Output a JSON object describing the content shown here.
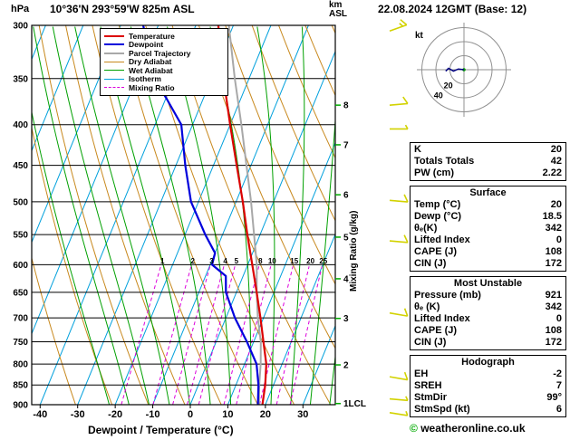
{
  "header": {
    "pressure_unit": "hPa",
    "station_title": "10°36'N 293°59'W 825m ASL",
    "datetime": "22.08.2024 12GMT (Base: 12)",
    "altitude_unit_line1": "km",
    "altitude_unit_line2": "ASL"
  },
  "chart_data": {
    "type": "skewt_log_p_sounding",
    "title": "10°36'N 293°59'W 825m ASL",
    "xlabel": "Dewpoint / Temperature (°C)",
    "x_ticks_c": [
      -40,
      -30,
      -20,
      -10,
      0,
      10,
      20,
      30
    ],
    "x_axis_range_c": [
      -42,
      38
    ],
    "pressure_ticks_hpa": [
      300,
      350,
      400,
      450,
      500,
      550,
      600,
      650,
      700,
      750,
      800,
      850,
      900
    ],
    "pressure_range_hpa": [
      300,
      900
    ],
    "km_axis": {
      "ticks": [
        {
          "label": "8",
          "p": 378
        },
        {
          "label": "7",
          "p": 424
        },
        {
          "label": "6",
          "p": 490
        },
        {
          "label": "5",
          "p": 554
        },
        {
          "label": "4",
          "p": 625
        },
        {
          "label": "3",
          "p": 701
        },
        {
          "label": "2",
          "p": 802
        },
        {
          "label": "1LCL",
          "p": 897
        }
      ]
    },
    "mixing_ratio_label": "Mixing Ratio (g/kg)",
    "mixing_ratio_values_gkg": [
      1,
      2,
      3,
      4,
      5,
      8,
      10,
      15,
      20,
      25
    ],
    "isotherm_step_c": 10,
    "dry_adiabat_step_k": 10,
    "wet_adiabat_step_c": 5,
    "temperature_profile_p_c": [
      [
        921,
        20
      ],
      [
        900,
        19.2
      ],
      [
        850,
        17.8
      ],
      [
        800,
        15.8
      ],
      [
        750,
        12.6
      ],
      [
        700,
        9.2
      ],
      [
        650,
        5.4
      ],
      [
        600,
        1.2
      ],
      [
        550,
        -3.4
      ],
      [
        500,
        -8.2
      ],
      [
        450,
        -13.8
      ],
      [
        400,
        -20
      ],
      [
        350,
        -26.8
      ],
      [
        300,
        -34
      ]
    ],
    "dewpoint_profile_p_c": [
      [
        921,
        18.5
      ],
      [
        900,
        18
      ],
      [
        850,
        16
      ],
      [
        800,
        13.2
      ],
      [
        750,
        8.2
      ],
      [
        700,
        2.4
      ],
      [
        650,
        -2.8
      ],
      [
        620,
        -4.6
      ],
      [
        600,
        -9.5
      ],
      [
        580,
        -10
      ],
      [
        550,
        -14.6
      ],
      [
        500,
        -22
      ],
      [
        450,
        -27.5
      ],
      [
        400,
        -33
      ],
      [
        370,
        -40
      ],
      [
        350,
        -45.5
      ],
      [
        300,
        -54
      ]
    ],
    "parcel_profile_p_c": [
      [
        921,
        20
      ],
      [
        900,
        18.3
      ],
      [
        850,
        16.2
      ],
      [
        800,
        14.3
      ],
      [
        750,
        11.9
      ],
      [
        700,
        8.5
      ],
      [
        650,
        5.4
      ],
      [
        600,
        2.4
      ],
      [
        550,
        -1.6
      ],
      [
        500,
        -6
      ],
      [
        450,
        -11.2
      ],
      [
        400,
        -17
      ],
      [
        350,
        -23.8
      ],
      [
        300,
        -31.2
      ]
    ],
    "wind_barbs": [
      {
        "p": 305,
        "dir": 70,
        "spd": 15
      },
      {
        "p": 378,
        "dir": 85,
        "spd": 10
      },
      {
        "p": 405,
        "dir": 90,
        "spd": 5
      },
      {
        "p": 498,
        "dir": 95,
        "spd": 10
      },
      {
        "p": 560,
        "dir": 95,
        "spd": 10
      },
      {
        "p": 690,
        "dir": 100,
        "spd": 10
      },
      {
        "p": 830,
        "dir": 100,
        "spd": 10
      },
      {
        "p": 885,
        "dir": 95,
        "spd": 5
      },
      {
        "p": 921,
        "dir": 99,
        "spd": 6
      }
    ],
    "colors": {
      "temperature": "#dc0000",
      "dewpoint": "#0000dc",
      "parcel": "#a8a8a8",
      "dry_adiabat": "#c8891e",
      "wet_adiabat": "#00a000",
      "isotherm": "#00a0dc",
      "mixing_ratio": "#dc00dc",
      "wind_barb": "#d2d200",
      "km_tick": "#00aa00",
      "grid": "#000000"
    },
    "layout": {
      "y_scale": "log_pressure",
      "skew_dx_per_dy": 0.41,
      "grid": true,
      "legend_position": "top-left-inside"
    }
  },
  "legend": {
    "items": [
      {
        "label": "Temperature",
        "color": "#dc0000",
        "style": "solid",
        "weight": 2
      },
      {
        "label": "Dewpoint",
        "color": "#0000dc",
        "style": "solid",
        "weight": 2
      },
      {
        "label": "Parcel Trajectory",
        "color": "#a8a8a8",
        "style": "solid",
        "weight": 2
      },
      {
        "label": "Dry Adiabat",
        "color": "#c8891e",
        "style": "solid",
        "weight": 1
      },
      {
        "label": "Wet Adiabat",
        "color": "#00a000",
        "style": "solid",
        "weight": 1
      },
      {
        "label": "Isotherm",
        "color": "#00a0dc",
        "style": "solid",
        "weight": 1
      },
      {
        "label": "Mixing Ratio",
        "color": "#dc00dc",
        "style": "dashed",
        "weight": 1
      }
    ]
  },
  "hodograph": {
    "unit_label": "kt",
    "rings_kt": [
      20,
      40,
      60
    ],
    "ring_labels": [
      "20",
      "40"
    ],
    "trace_uv_kt": [
      [
        0,
        0
      ],
      [
        -8,
        1
      ],
      [
        -15,
        -2
      ],
      [
        -22,
        2
      ],
      [
        -26,
        -2
      ]
    ],
    "trace_color": "#000080"
  },
  "panels": [
    {
      "rows": [
        [
          "K",
          "20"
        ],
        [
          "Totals Totals",
          "42"
        ],
        [
          "PW (cm)",
          "2.22"
        ]
      ]
    },
    {
      "title": "Surface",
      "rows": [
        [
          "Temp (°C)",
          "20"
        ],
        [
          "Dewp (°C)",
          "18.5"
        ],
        [
          "θₑ(K)",
          "342"
        ],
        [
          "Lifted Index",
          "0"
        ],
        [
          "CAPE (J)",
          "108"
        ],
        [
          "CIN (J)",
          "172"
        ]
      ]
    },
    {
      "title": "Most Unstable",
      "rows": [
        [
          "Pressure (mb)",
          "921"
        ],
        [
          "θₑ (K)",
          "342"
        ],
        [
          "Lifted Index",
          "0"
        ],
        [
          "CAPE (J)",
          "108"
        ],
        [
          "CIN (J)",
          "172"
        ]
      ]
    },
    {
      "title": "Hodograph",
      "rows": [
        [
          "EH",
          "-2"
        ],
        [
          "SREH",
          "7"
        ],
        [
          "StmDir",
          "99°"
        ],
        [
          "StmSpd (kt)",
          "6"
        ]
      ]
    }
  ],
  "footer": {
    "copyright_symbol": "©",
    "copyright_text": "weatheronline.co.uk"
  }
}
